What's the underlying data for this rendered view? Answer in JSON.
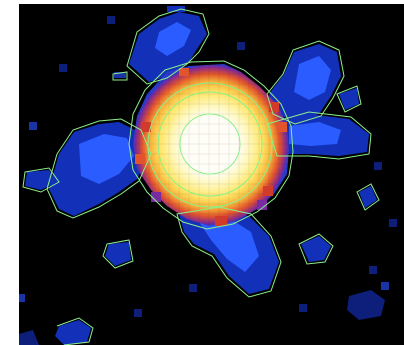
{
  "image": {
    "background": "#000000",
    "frame": "#ffffff",
    "colormap": [
      "#0a1a6e",
      "#1230b8",
      "#2a62ff",
      "#7a2aa0",
      "#d23a2a",
      "#f07a2a",
      "#f8c43a",
      "#fff27a",
      "#fffdf0"
    ],
    "contour_color": "#8cf08c"
  }
}
